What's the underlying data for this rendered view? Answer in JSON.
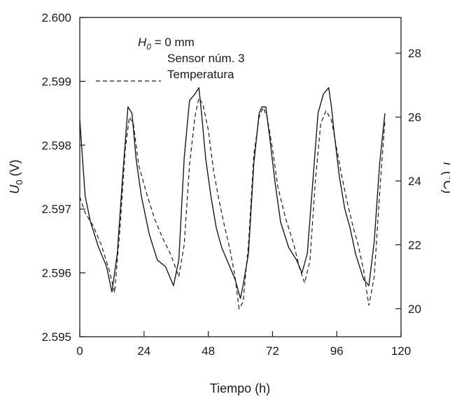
{
  "chart_data": {
    "type": "line",
    "title": "",
    "xlabel": "Tiempo (h)",
    "ylabel_left": {
      "var": "U",
      "sub": "0",
      "unit": " (V)"
    },
    "ylabel_right": {
      "var": "T",
      "unit": " (°C)"
    },
    "xlim": [
      0,
      120
    ],
    "ylim_left": [
      2.595,
      2.6
    ],
    "ylim_right": [
      19.12,
      29.12
    ],
    "x_ticks": [
      0,
      24,
      48,
      72,
      96,
      120
    ],
    "x_tick_labels": [
      "0",
      "24",
      "48",
      "72",
      "96",
      "120"
    ],
    "y_left_ticks": [
      2.595,
      2.596,
      2.597,
      2.598,
      2.599,
      2.6
    ],
    "y_left_tick_labels": [
      "2.595",
      "2.596",
      "2.597",
      "2.598",
      "2.599",
      "2.600"
    ],
    "y_right_ticks": [
      20,
      22,
      24,
      26,
      28
    ],
    "y_right_tick_labels": [
      "20",
      "22",
      "24",
      "26",
      "28"
    ],
    "grid": false,
    "legend_position": "top-center",
    "annotation": {
      "var": "H",
      "sub": "0",
      "rest": " = 0 mm"
    },
    "series": [
      {
        "name": "Sensor núm. 3",
        "axis": "left",
        "style": "solid",
        "x": [
          0,
          2,
          4,
          7,
          10,
          12,
          14,
          16,
          18,
          19.5,
          21,
          23,
          26,
          29,
          32,
          35,
          37,
          39,
          41,
          43,
          44.5,
          45.5,
          47,
          49,
          51,
          53,
          56,
          58,
          60,
          61,
          63,
          65,
          67,
          68,
          69.5,
          71,
          73,
          75,
          78,
          81,
          83,
          85,
          87,
          89,
          91,
          93,
          94,
          95,
          97,
          99,
          101,
          103,
          106,
          108,
          110,
          112,
          114
        ],
        "y": [
          2.5984,
          2.5972,
          2.5968,
          2.5964,
          2.5961,
          2.5957,
          2.5963,
          2.5975,
          2.5986,
          2.5985,
          2.5978,
          2.5972,
          2.5966,
          2.5962,
          2.5961,
          2.5958,
          2.5962,
          2.5978,
          2.5987,
          2.5988,
          2.5989,
          2.5985,
          2.5978,
          2.5972,
          2.5967,
          2.5964,
          2.5961,
          2.5959,
          2.5956,
          2.5958,
          2.5963,
          2.5977,
          2.5985,
          2.5986,
          2.5986,
          2.5981,
          2.5974,
          2.5968,
          2.5964,
          2.5962,
          2.596,
          2.5963,
          2.5974,
          2.5985,
          2.5988,
          2.5989,
          2.5986,
          2.5982,
          2.5975,
          2.597,
          2.5967,
          2.5963,
          2.5959,
          2.5958,
          2.5965,
          2.5977,
          2.5985
        ]
      },
      {
        "name": "Temperatura",
        "axis": "right",
        "style": "dashed",
        "x": [
          0,
          2,
          5,
          8,
          11,
          13,
          15,
          17,
          18.5,
          20,
          22,
          25,
          28,
          31,
          34,
          37,
          39,
          41,
          43,
          44.5,
          46,
          48,
          50,
          52,
          54,
          56,
          58,
          59.5,
          61,
          63,
          65,
          67,
          68.5,
          70,
          72,
          74,
          77,
          80,
          82,
          84,
          86,
          88,
          90,
          92,
          94,
          96,
          98,
          100,
          102,
          104,
          106,
          108,
          110,
          112,
          114
        ],
        "y": [
          23.5,
          23.0,
          22.6,
          22.0,
          21.2,
          20.5,
          22.5,
          25.0,
          26.0,
          25.8,
          24.5,
          23.6,
          22.8,
          22.2,
          21.7,
          21.0,
          22.0,
          24.5,
          26.0,
          26.6,
          26.4,
          25.6,
          24.3,
          23.4,
          22.6,
          21.9,
          21.0,
          20.0,
          20.2,
          22.0,
          24.8,
          26.0,
          26.3,
          26.0,
          25.0,
          23.8,
          22.8,
          22.0,
          21.3,
          20.8,
          21.5,
          24.0,
          25.8,
          26.2,
          25.9,
          25.0,
          24.1,
          23.3,
          22.6,
          22.0,
          21.2,
          20.1,
          21.0,
          23.6,
          25.9
        ]
      }
    ]
  }
}
